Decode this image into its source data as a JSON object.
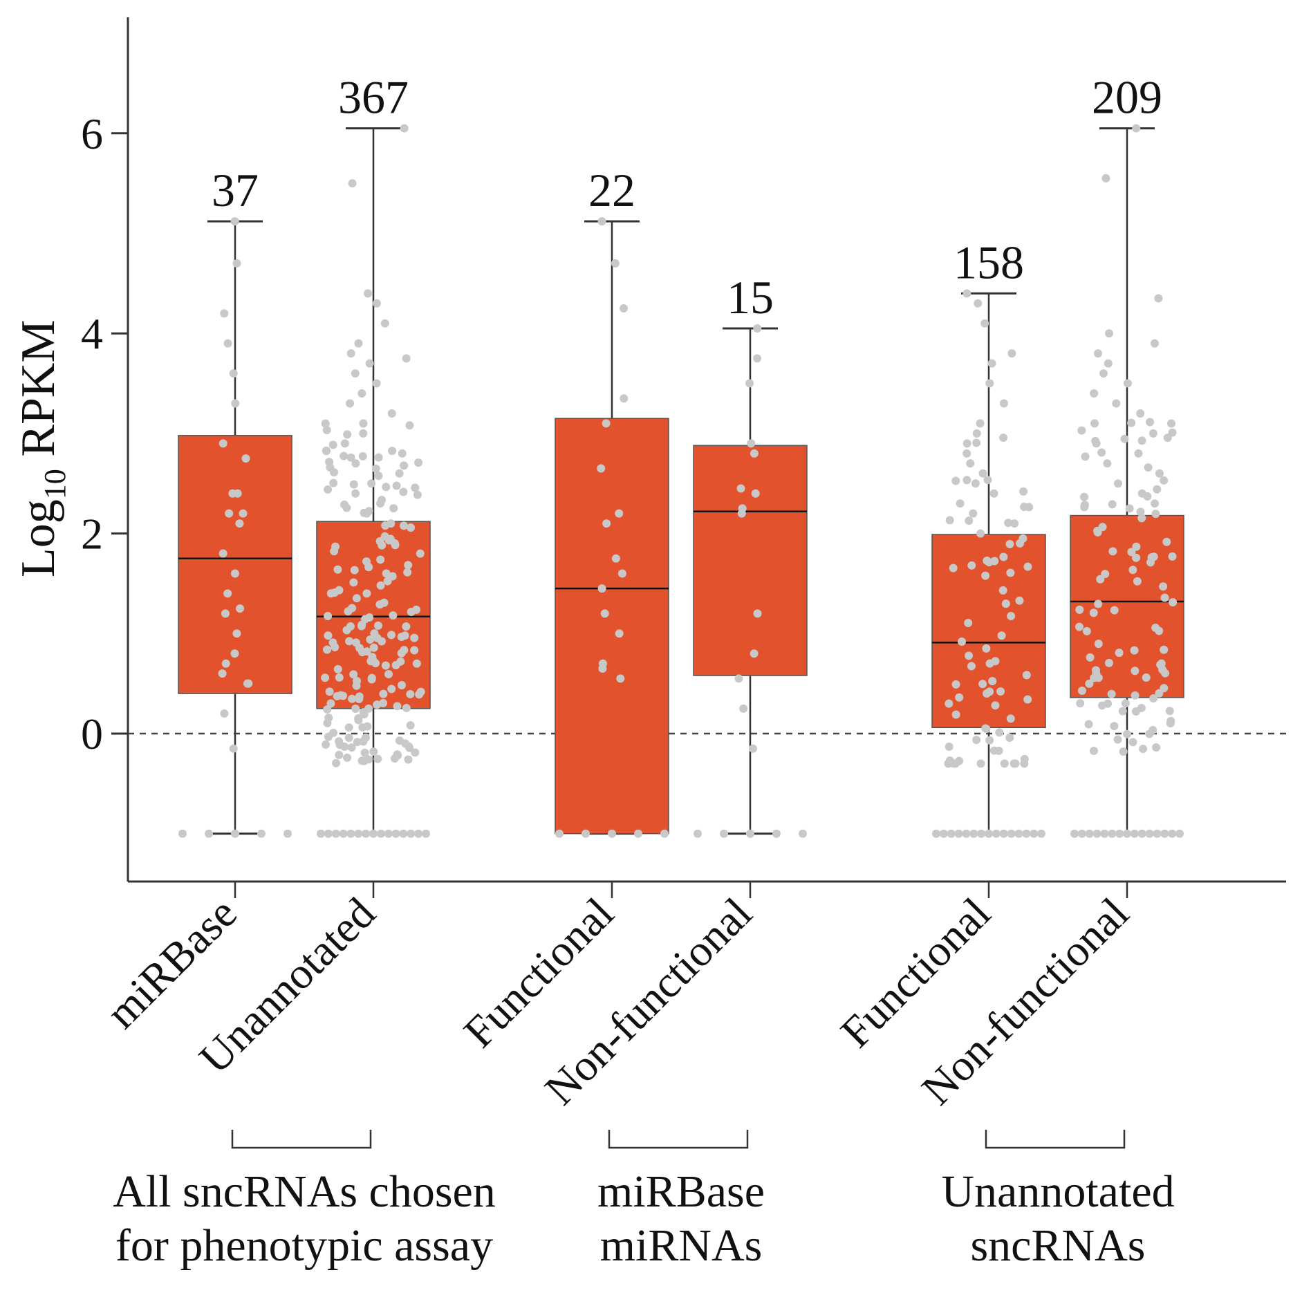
{
  "chart_data": {
    "type": "box",
    "title": "",
    "ylabel": {
      "main": "Log",
      "sub": "10",
      "rest": " RPKM"
    },
    "ylim": [
      -1.5,
      7.2
    ],
    "yticks": [
      0,
      2,
      4,
      6
    ],
    "zero_line": true,
    "box_color": "#e2522d",
    "point_color": "#c8c8c8",
    "categories": [
      "miRBase",
      "Unannotated",
      "Functional",
      "Non-functional",
      "Functional",
      "Non-functional"
    ],
    "counts": [
      "37",
      "367",
      "22",
      "15",
      "158",
      "209"
    ],
    "series": [
      {
        "name": "miRBase",
        "group": 0,
        "n": 37,
        "min": -1,
        "q1": 0.4,
        "median": 1.75,
        "q3": 2.98,
        "max": 5.12,
        "points": [
          5.12,
          4.7,
          4.2,
          3.9,
          3.6,
          3.3,
          2.9,
          2.75,
          2.4,
          2.4,
          2.2,
          2.2,
          2.1,
          1.8,
          1.6,
          1.4,
          1.25,
          1.2,
          1.0,
          0.8,
          0.7,
          0.6,
          0.5,
          0.5,
          0.2,
          -0.15
        ]
      },
      {
        "name": "Unannotated",
        "group": 0,
        "n": 367,
        "min": -1,
        "q1": 0.25,
        "median": 1.17,
        "q3": 2.12,
        "max": 6.05,
        "points": [
          6.05,
          5.5,
          4.4,
          4.3,
          4.1,
          3.9,
          3.8,
          3.75,
          3.7,
          3.6,
          3.5,
          3.4,
          3.3,
          3.2,
          3.1,
          3.0,
          2.9,
          2.8,
          2.7,
          2.6,
          2.5,
          2.4,
          2.3,
          2.2,
          2.1
        ]
      },
      {
        "name": "Functional",
        "group": 1,
        "n": 22,
        "min": -1,
        "q1": -1,
        "median": 1.45,
        "q3": 3.15,
        "max": 5.12,
        "points": [
          5.12,
          4.7,
          4.25,
          3.35,
          3.1,
          2.65,
          2.2,
          2.1,
          1.75,
          1.6,
          1.45,
          1.2,
          1.0,
          0.7,
          0.65,
          0.55
        ]
      },
      {
        "name": "Non-functional",
        "group": 1,
        "n": 15,
        "min": -1,
        "q1": 0.58,
        "median": 2.22,
        "q3": 2.88,
        "max": 4.05,
        "points": [
          4.05,
          3.75,
          3.5,
          2.9,
          2.8,
          2.45,
          2.4,
          2.25,
          2.2,
          1.2,
          0.8,
          0.55,
          0.25,
          -0.15
        ]
      },
      {
        "name": "Functional",
        "group": 2,
        "n": 158,
        "min": -1,
        "q1": 0.06,
        "median": 0.91,
        "q3": 1.99,
        "max": 4.4,
        "points": [
          4.4,
          4.3,
          4.1,
          3.8,
          3.7,
          3.5,
          3.3,
          3.1,
          3.0,
          2.9,
          2.8,
          2.7,
          2.6,
          2.5,
          2.4,
          2.3,
          2.2,
          2.1,
          2.0
        ]
      },
      {
        "name": "Non-functional",
        "group": 2,
        "n": 209,
        "min": -1,
        "q1": 0.36,
        "median": 1.32,
        "q3": 2.18,
        "max": 6.05,
        "points": [
          6.05,
          5.55,
          4.35,
          4.0,
          3.9,
          3.8,
          3.7,
          3.6,
          3.5,
          3.4,
          3.3,
          3.2,
          3.1,
          3.0,
          2.9,
          2.8,
          2.7,
          2.6,
          2.5,
          2.4,
          2.3,
          2.25
        ]
      }
    ],
    "groups": [
      {
        "label_lines": [
          "All sncRNAs chosen",
          "for phenotypic assay"
        ]
      },
      {
        "label_lines": [
          "miRBase",
          "miRNAs"
        ]
      },
      {
        "label_lines": [
          "Unannotated",
          "sncRNAs"
        ]
      }
    ]
  }
}
